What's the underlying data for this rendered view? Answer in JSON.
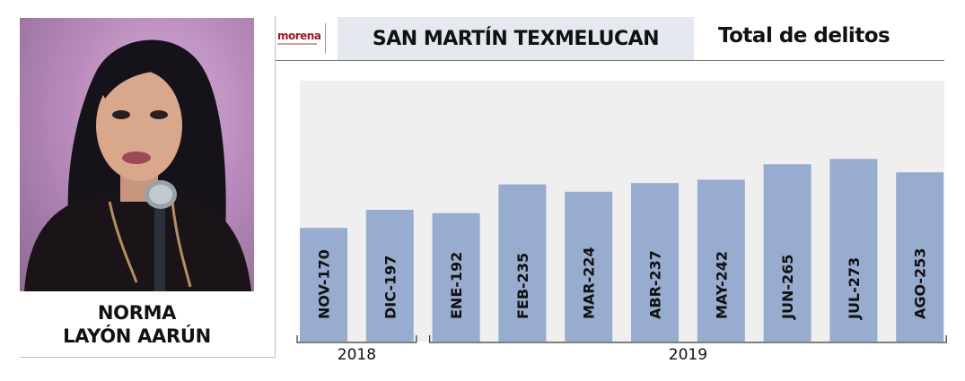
{
  "person": {
    "name_line1": "NORMA",
    "name_line2": "LAYÓN AARÚN"
  },
  "header": {
    "logo_text": "morena",
    "place": "SAN MARTÍN TEXMELUCAN",
    "title": "Total de delitos"
  },
  "colors": {
    "bar": "#98acd0",
    "plot_bg": "#efefef",
    "place_box": "#e4e8ef",
    "logo": "#9b1a22"
  },
  "chart_data": {
    "type": "bar",
    "title": "Total de delitos",
    "categories": [
      "NOV",
      "DIC",
      "ENE",
      "FEB",
      "MAR",
      "ABR",
      "MAY",
      "JUN",
      "JUL",
      "AGO"
    ],
    "values": [
      170,
      197,
      192,
      235,
      224,
      237,
      242,
      265,
      273,
      253
    ],
    "labels": [
      "NOV-170",
      "DIC-197",
      "ENE-192",
      "FEB-235",
      "MAR-224",
      "ABR-237",
      "MAY-242",
      "JUN-265",
      "JUL-273",
      "AGO-253"
    ],
    "year_groups": [
      {
        "label": "2018",
        "start": 0,
        "end": 1
      },
      {
        "label": "2019",
        "start": 2,
        "end": 9
      }
    ],
    "ylim": [
      0,
      390
    ],
    "grid": false,
    "legend": "none",
    "xlabel": "",
    "ylabel": ""
  }
}
